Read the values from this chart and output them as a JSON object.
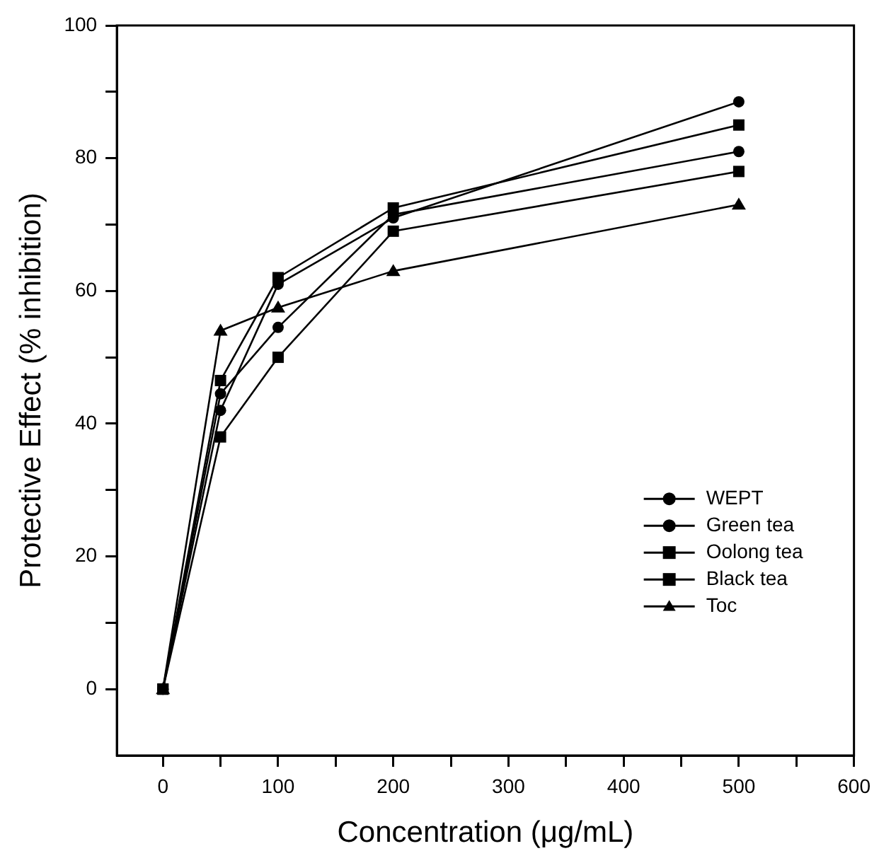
{
  "chart_data": {
    "type": "line",
    "xlabel": "Concentration (μg/mL)",
    "ylabel": "Protective Effect (% inhibition)",
    "x": [
      0,
      50,
      100,
      200,
      500
    ],
    "series": [
      {
        "name": "WEPT",
        "color": "#000000",
        "marker": "circle",
        "values": [
          0,
          42,
          61,
          71,
          88.5
        ]
      },
      {
        "name": "Green tea",
        "color": "#000000",
        "marker": "circle",
        "values": [
          0,
          44.5,
          54.5,
          71.5,
          81
        ]
      },
      {
        "name": "Oolong tea",
        "color": "#000000",
        "marker": "square",
        "values": [
          0,
          38,
          50,
          69,
          78
        ]
      },
      {
        "name": "Black tea",
        "color": "#000000",
        "marker": "square",
        "values": [
          0,
          46.5,
          62,
          72.5,
          85
        ]
      },
      {
        "name": "Toc",
        "color": "#000000",
        "marker": "triangle",
        "values": [
          0,
          54,
          57.5,
          63,
          73
        ]
      }
    ],
    "xlim": [
      -40,
      600
    ],
    "xticks": [
      0,
      {
        "value": 50,
        "label": null
      },
      100,
      {
        "value": 150,
        "label": null
      },
      200,
      {
        "value": 250,
        "label": null
      },
      300,
      {
        "value": 350,
        "label": null
      },
      400,
      {
        "value": 450,
        "label": null
      },
      500,
      {
        "value": 550,
        "label": null
      },
      600
    ],
    "ylim": [
      -10,
      100
    ],
    "yticks": [
      0,
      {
        "value": 10,
        "label": null
      },
      20,
      {
        "value": 30,
        "label": null
      },
      40,
      {
        "value": 50,
        "label": null
      },
      60,
      {
        "value": 70,
        "label": null
      },
      80,
      {
        "value": 90,
        "label": null
      },
      100
    ],
    "grid": false,
    "legend": "right",
    "line_style": "solid"
  }
}
